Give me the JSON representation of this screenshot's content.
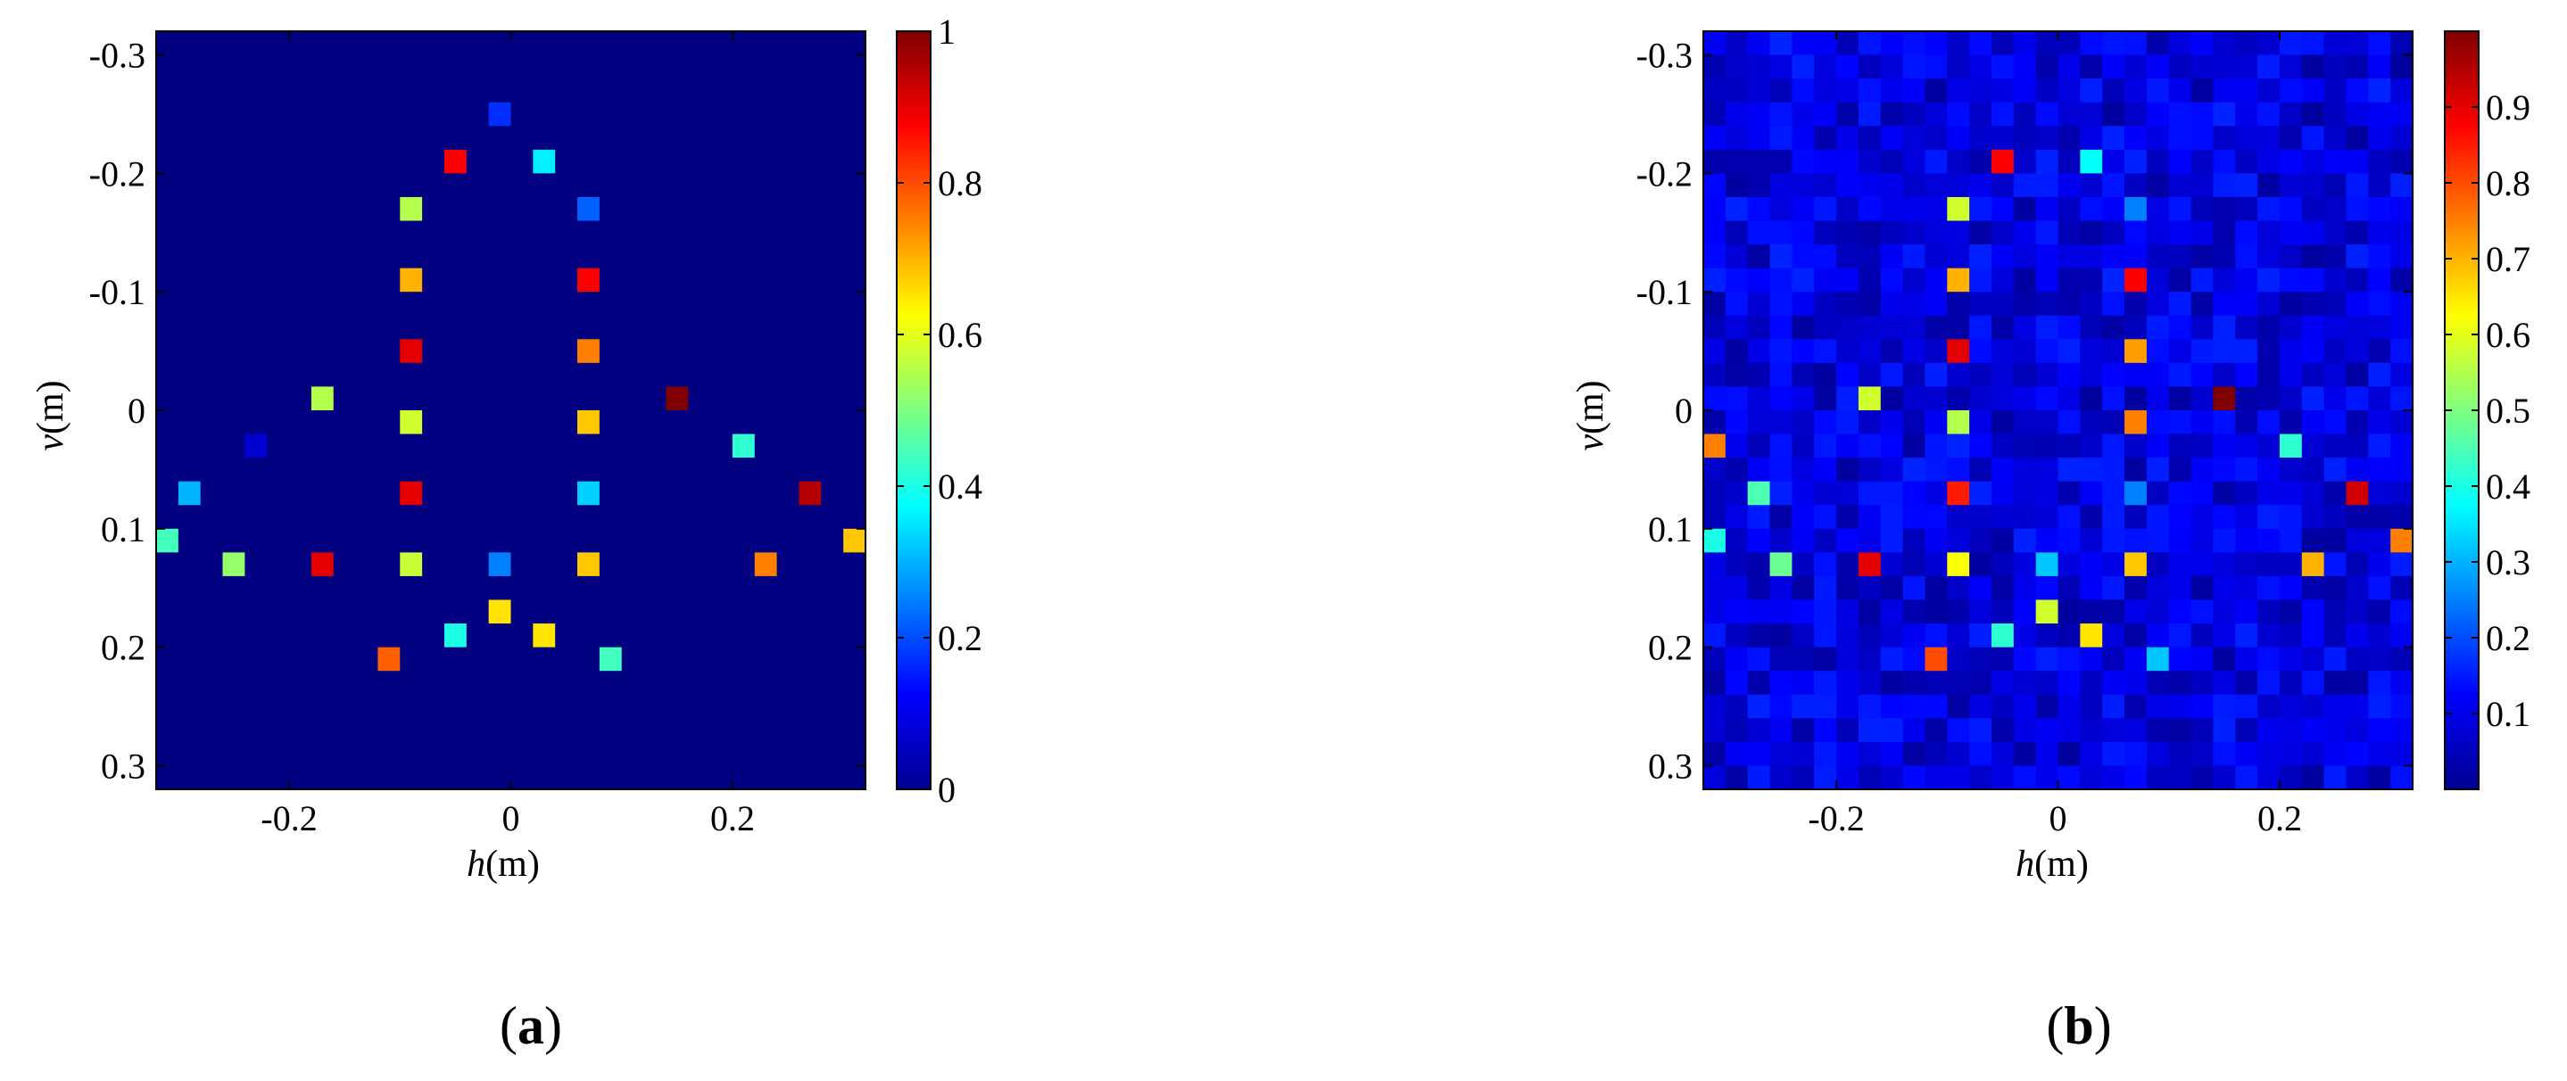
{
  "chart_data": [
    {
      "type": "heatmap",
      "caption": "a",
      "xlabel": "h(m)",
      "ylabel": "v(m)",
      "xlabel_parts": [
        "h",
        "(m)"
      ],
      "ylabel_parts": [
        "v",
        "(m)"
      ],
      "xlim": [
        -0.32,
        0.32
      ],
      "ylim": [
        -0.32,
        0.32
      ],
      "y_reversed": true,
      "grid": false,
      "grid_size": 32,
      "x_ticks": [
        -0.2,
        0,
        0.2
      ],
      "x_tick_labels": [
        "-0.2",
        "0",
        "0.2"
      ],
      "y_ticks": [
        -0.3,
        -0.2,
        -0.1,
        0,
        0.1,
        0.2,
        0.3
      ],
      "y_tick_labels": [
        "-0.3",
        "-0.2",
        "-0.1",
        "0",
        "0.1",
        "0.2",
        "0.3"
      ],
      "colorbar": {
        "colormap": "jet",
        "range": [
          0,
          1
        ],
        "ticks": [
          0,
          0.2,
          0.4,
          0.6,
          0.8,
          1
        ],
        "tick_labels": [
          "0",
          "0.2",
          "0.4",
          "0.6",
          "0.8",
          "1"
        ]
      },
      "background_value": 0.0,
      "noise_level": 0.0,
      "points": [
        {
          "h": -0.01,
          "v": -0.25,
          "value": 0.17
        },
        {
          "h": -0.05,
          "v": -0.21,
          "value": 0.88
        },
        {
          "h": 0.03,
          "v": -0.21,
          "value": 0.36
        },
        {
          "h": -0.09,
          "v": -0.17,
          "value": 0.55
        },
        {
          "h": 0.07,
          "v": -0.17,
          "value": 0.22
        },
        {
          "h": -0.09,
          "v": -0.11,
          "value": 0.7
        },
        {
          "h": 0.07,
          "v": -0.11,
          "value": 0.88
        },
        {
          "h": -0.09,
          "v": -0.05,
          "value": 0.9
        },
        {
          "h": 0.07,
          "v": -0.05,
          "value": 0.75
        },
        {
          "h": -0.17,
          "v": -0.01,
          "value": 0.55
        },
        {
          "h": 0.15,
          "v": -0.01,
          "value": 1.0
        },
        {
          "h": -0.09,
          "v": 0.01,
          "value": 0.58
        },
        {
          "h": 0.07,
          "v": 0.01,
          "value": 0.68
        },
        {
          "h": -0.23,
          "v": 0.03,
          "value": 0.08
        },
        {
          "h": 0.21,
          "v": 0.03,
          "value": 0.42
        },
        {
          "h": -0.29,
          "v": 0.07,
          "value": 0.3
        },
        {
          "h": -0.09,
          "v": 0.07,
          "value": 0.9
        },
        {
          "h": 0.07,
          "v": 0.07,
          "value": 0.33
        },
        {
          "h": 0.27,
          "v": 0.07,
          "value": 0.95
        },
        {
          "h": -0.31,
          "v": 0.11,
          "value": 0.44
        },
        {
          "h": 0.31,
          "v": 0.11,
          "value": 0.68
        },
        {
          "h": -0.25,
          "v": 0.13,
          "value": 0.52
        },
        {
          "h": -0.17,
          "v": 0.13,
          "value": 0.9
        },
        {
          "h": -0.09,
          "v": 0.13,
          "value": 0.57
        },
        {
          "h": -0.01,
          "v": 0.13,
          "value": 0.25
        },
        {
          "h": 0.07,
          "v": 0.13,
          "value": 0.68
        },
        {
          "h": 0.23,
          "v": 0.13,
          "value": 0.75
        },
        {
          "h": -0.01,
          "v": 0.17,
          "value": 0.65
        },
        {
          "h": -0.05,
          "v": 0.19,
          "value": 0.4
        },
        {
          "h": 0.03,
          "v": 0.19,
          "value": 0.65
        },
        {
          "h": -0.11,
          "v": 0.21,
          "value": 0.78
        },
        {
          "h": 0.09,
          "v": 0.21,
          "value": 0.44
        }
      ]
    },
    {
      "type": "heatmap",
      "caption": "b",
      "xlabel": "h(m)",
      "ylabel": "v(m)",
      "xlabel_parts": [
        "h",
        "(m)"
      ],
      "ylabel_parts": [
        "v",
        "(m)"
      ],
      "xlim": [
        -0.32,
        0.32
      ],
      "ylim": [
        -0.32,
        0.32
      ],
      "y_reversed": true,
      "grid": false,
      "grid_size": 32,
      "x_ticks": [
        -0.2,
        0,
        0.2
      ],
      "x_tick_labels": [
        "-0.2",
        "0",
        "0.2"
      ],
      "y_ticks": [
        -0.3,
        -0.2,
        -0.1,
        0,
        0.1,
        0.2,
        0.3
      ],
      "y_tick_labels": [
        "-0.3",
        "-0.2",
        "-0.1",
        "0",
        "0.1",
        "0.2",
        "0.3"
      ],
      "colorbar": {
        "colormap": "jet",
        "range": [
          0,
          1
        ],
        "ticks": [
          0.1,
          0.2,
          0.3,
          0.4,
          0.5,
          0.6,
          0.7,
          0.8,
          0.9
        ],
        "tick_labels": [
          "0.1",
          "0.2",
          "0.3",
          "0.4",
          "0.5",
          "0.6",
          "0.7",
          "0.8",
          "0.9"
        ]
      },
      "background_value": 0.03,
      "noise_level": 0.13,
      "points": [
        {
          "h": -0.05,
          "v": -0.21,
          "value": 0.88
        },
        {
          "h": 0.03,
          "v": -0.21,
          "value": 0.38
        },
        {
          "h": -0.09,
          "v": -0.17,
          "value": 0.58
        },
        {
          "h": 0.07,
          "v": -0.17,
          "value": 0.25
        },
        {
          "h": -0.09,
          "v": -0.11,
          "value": 0.7
        },
        {
          "h": 0.07,
          "v": -0.11,
          "value": 0.88
        },
        {
          "h": -0.09,
          "v": -0.05,
          "value": 0.9
        },
        {
          "h": 0.07,
          "v": -0.05,
          "value": 0.72
        },
        {
          "h": -0.17,
          "v": -0.01,
          "value": 0.58
        },
        {
          "h": 0.15,
          "v": -0.01,
          "value": 1.0
        },
        {
          "h": -0.09,
          "v": 0.01,
          "value": 0.55
        },
        {
          "h": 0.07,
          "v": 0.01,
          "value": 0.75
        },
        {
          "h": -0.31,
          "v": 0.03,
          "value": 0.75
        },
        {
          "h": 0.21,
          "v": 0.03,
          "value": 0.42
        },
        {
          "h": -0.27,
          "v": 0.07,
          "value": 0.45
        },
        {
          "h": -0.09,
          "v": 0.07,
          "value": 0.85
        },
        {
          "h": 0.07,
          "v": 0.07,
          "value": 0.25
        },
        {
          "h": 0.27,
          "v": 0.07,
          "value": 0.92
        },
        {
          "h": -0.31,
          "v": 0.11,
          "value": 0.4
        },
        {
          "h": 0.31,
          "v": 0.11,
          "value": 0.75
        },
        {
          "h": -0.25,
          "v": 0.13,
          "value": 0.48
        },
        {
          "h": -0.17,
          "v": 0.13,
          "value": 0.9
        },
        {
          "h": -0.09,
          "v": 0.13,
          "value": 0.62
        },
        {
          "h": -0.01,
          "v": 0.13,
          "value": 0.32
        },
        {
          "h": 0.07,
          "v": 0.13,
          "value": 0.68
        },
        {
          "h": 0.23,
          "v": 0.13,
          "value": 0.7
        },
        {
          "h": -0.01,
          "v": 0.17,
          "value": 0.58
        },
        {
          "h": -0.05,
          "v": 0.19,
          "value": 0.42
        },
        {
          "h": 0.03,
          "v": 0.19,
          "value": 0.65
        },
        {
          "h": -0.11,
          "v": 0.21,
          "value": 0.8
        },
        {
          "h": 0.09,
          "v": 0.21,
          "value": 0.32
        }
      ]
    }
  ]
}
